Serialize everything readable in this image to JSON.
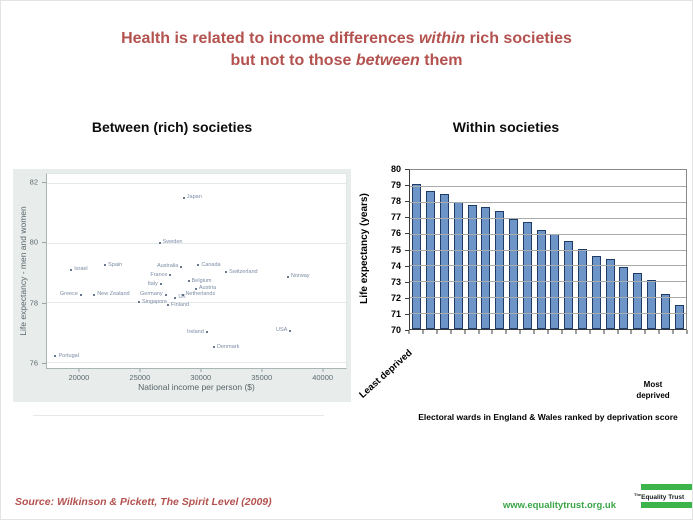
{
  "slide": {
    "title_line1": {
      "pre": "Health is related to income differences ",
      "italic": "within",
      "post": " rich societies"
    },
    "title_line2": {
      "pre": "but not to those ",
      "italic": "between",
      "post": " them"
    },
    "title_color": "#b3524f"
  },
  "chart_data": [
    {
      "type": "scatter",
      "title": "Between (rich) societies",
      "xlabel": "National income per person ($)",
      "ylabel": "Life expectancy - men and women",
      "xlim": [
        17300,
        42000
      ],
      "ylim": [
        75.8,
        82.3
      ],
      "xticks": [
        20000,
        25000,
        30000,
        35000,
        40000
      ],
      "yticks": [
        76,
        78,
        80,
        82
      ],
      "grid": "horizontal",
      "dot_color": "#3b4d6b",
      "label_color": "#7c8da4",
      "background": "#e8edec",
      "points": [
        {
          "label": "Japan",
          "x": 28600,
          "y": 81.5,
          "side": "right"
        },
        {
          "label": "Sweden",
          "x": 26600,
          "y": 80.0,
          "side": "right"
        },
        {
          "label": "Israel",
          "x": 19300,
          "y": 79.1,
          "side": "right"
        },
        {
          "label": "Spain",
          "x": 22100,
          "y": 79.25,
          "side": "right"
        },
        {
          "label": "Australia",
          "x": 28400,
          "y": 79.2,
          "side": "left"
        },
        {
          "label": "Canada",
          "x": 29800,
          "y": 79.25,
          "side": "right"
        },
        {
          "label": "Switzerland",
          "x": 32100,
          "y": 79.0,
          "side": "right"
        },
        {
          "label": "Norway",
          "x": 37200,
          "y": 78.85,
          "side": "right"
        },
        {
          "label": "France",
          "x": 27500,
          "y": 78.9,
          "side": "left"
        },
        {
          "label": "Italy",
          "x": 26700,
          "y": 78.6,
          "side": "left"
        },
        {
          "label": "Belgium",
          "x": 29000,
          "y": 78.7,
          "side": "right"
        },
        {
          "label": "Austria",
          "x": 29600,
          "y": 78.45,
          "side": "right"
        },
        {
          "label": "Greece",
          "x": 20100,
          "y": 78.25,
          "side": "left"
        },
        {
          "label": "New Zealand",
          "x": 21200,
          "y": 78.25,
          "side": "right"
        },
        {
          "label": "Germany",
          "x": 27100,
          "y": 78.25,
          "side": "left"
        },
        {
          "label": "UK",
          "x": 27900,
          "y": 78.15,
          "side": "right"
        },
        {
          "label": "Netherlands",
          "x": 28500,
          "y": 78.25,
          "side": "right"
        },
        {
          "label": "Singapore",
          "x": 24900,
          "y": 78.0,
          "side": "right"
        },
        {
          "label": "Finland",
          "x": 27300,
          "y": 77.9,
          "side": "right"
        },
        {
          "label": "Ireland",
          "x": 30500,
          "y": 77.0,
          "side": "left"
        },
        {
          "label": "USA",
          "x": 37400,
          "y": 77.05,
          "side": "left"
        },
        {
          "label": "Denmark",
          "x": 31100,
          "y": 76.5,
          "side": "right"
        },
        {
          "label": "Portugal",
          "x": 18000,
          "y": 76.2,
          "side": "right"
        }
      ]
    },
    {
      "type": "bar",
      "title": "Within societies",
      "ylabel": "Life expectancy (years)",
      "caption": "Electoral wards in England & Wales ranked by deprivation score",
      "x_left_label": "Least deprived",
      "x_right_label": "Most\ndeprived",
      "ylim": [
        70,
        80
      ],
      "ytick_step": 1,
      "grid": "horizontal",
      "bar_fill": "#6e95c8",
      "bar_border": "#1f3b67",
      "values": [
        79.1,
        78.7,
        78.5,
        78.0,
        77.8,
        77.7,
        77.45,
        76.95,
        76.7,
        76.25,
        76.0,
        75.55,
        75.05,
        74.6,
        74.4,
        73.9,
        73.5,
        73.1,
        72.2,
        71.5
      ]
    }
  ],
  "footer": {
    "source": "Source: Wilkinson & Pickett, The Spirit Level (2009)",
    "source_color": "#b3524f",
    "website": "www.equalitytrust.org.uk",
    "website_color": "#3aa648",
    "logo": {
      "prefix": "The",
      "name": "Equality Trust",
      "green": "#3cb44a"
    }
  }
}
